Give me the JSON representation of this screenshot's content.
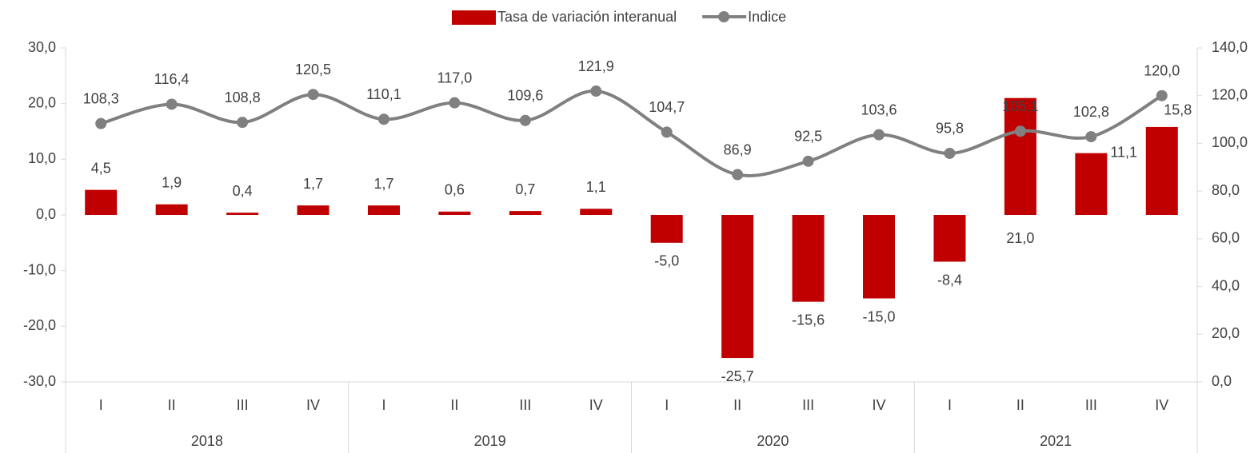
{
  "chart_data": {
    "type": "bar-line",
    "categories": [
      "I",
      "II",
      "III",
      "IV",
      "I",
      "II",
      "III",
      "IV",
      "I",
      "II",
      "III",
      "IV",
      "I",
      "II",
      "III",
      "IV"
    ],
    "category_groups": [
      "2018",
      "2019",
      "2020",
      "2021"
    ],
    "series": [
      {
        "name": "Tasa de variación interanual",
        "type": "bar",
        "color": "#c00000",
        "values": [
          4.5,
          1.9,
          0.4,
          1.7,
          1.7,
          0.6,
          0.7,
          1.1,
          -5.0,
          -25.7,
          -15.6,
          -15.0,
          -8.4,
          21.0,
          11.1,
          15.8
        ],
        "value_labels": [
          "4,5",
          "1,9",
          "0,4",
          "1,7",
          "1,7",
          "0,6",
          "0,7",
          "1,1",
          "-5,0",
          "-25,7",
          "-15,6",
          "-15,0",
          "-8,4",
          "21,0",
          "11,1",
          "15,8"
        ]
      },
      {
        "name": "Indice",
        "type": "line",
        "axis": "y2",
        "color": "#808080",
        "values": [
          108.3,
          116.4,
          108.8,
          120.5,
          110.1,
          117.0,
          109.6,
          121.9,
          104.7,
          86.9,
          92.5,
          103.6,
          95.8,
          105.1,
          102.8,
          120.0
        ],
        "value_labels": [
          "108,3",
          "116,4",
          "108,8",
          "120,5",
          "110,1",
          "117,0",
          "109,6",
          "121,9",
          "104,7",
          "86,9",
          "92,5",
          "103,6",
          "95,8",
          "105,1",
          "102,8",
          "120,0"
        ]
      }
    ],
    "ylim": [
      -30,
      30
    ],
    "yticks": [
      {
        "value": -30,
        "label": "-30,0"
      },
      {
        "value": -20,
        "label": "-20,0"
      },
      {
        "value": -10,
        "label": "-10,0"
      },
      {
        "value": 0,
        "label": "0,0"
      },
      {
        "value": 10,
        "label": "10,0"
      },
      {
        "value": 20,
        "label": "20,0"
      },
      {
        "value": 30,
        "label": "30,0"
      }
    ],
    "y2lim": [
      0,
      140
    ],
    "y2ticks": [
      {
        "value": 0,
        "label": "0,0"
      },
      {
        "value": 20,
        "label": "20,0"
      },
      {
        "value": 40,
        "label": "40,0"
      },
      {
        "value": 60,
        "label": "60,0"
      },
      {
        "value": 80,
        "label": "80,0"
      },
      {
        "value": 100,
        "label": "100,0"
      },
      {
        "value": 120,
        "label": "120,0"
      },
      {
        "value": 140,
        "label": "140,0"
      }
    ],
    "legend": "top"
  }
}
